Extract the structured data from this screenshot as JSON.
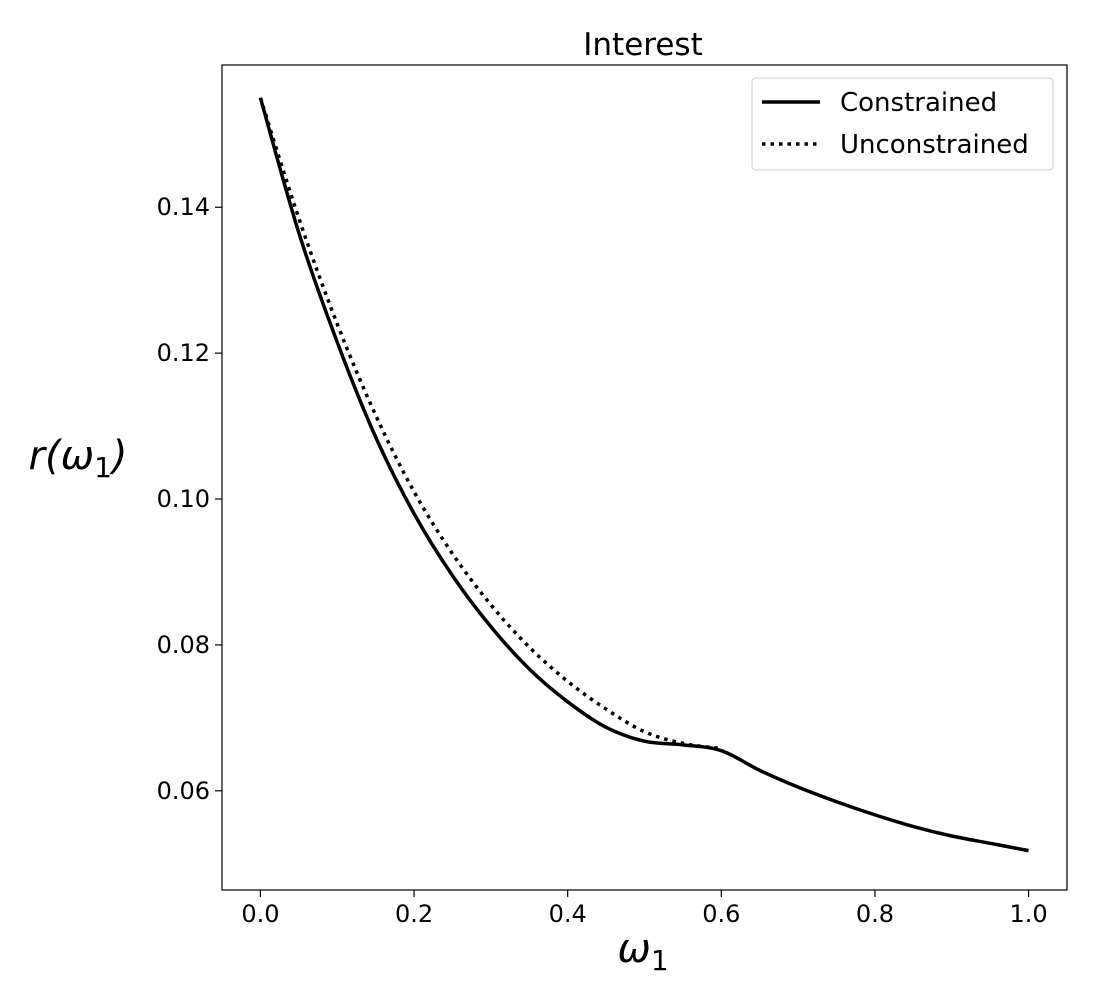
{
  "chart_data": {
    "type": "line",
    "title": "Interest",
    "xlabel": {
      "symbol": "ω",
      "sub": "1"
    },
    "ylabel": {
      "prefix": "r(",
      "symbol": "ω",
      "sub": "1",
      "suffix": ")"
    },
    "xlim": [
      -0.05,
      1.05
    ],
    "ylim": [
      0.0464,
      0.1595
    ],
    "xticks": [
      0.0,
      0.2,
      0.4,
      0.6,
      0.8,
      1.0
    ],
    "xtick_labels": [
      "0.0",
      "0.2",
      "0.4",
      "0.6",
      "0.8",
      "1.0"
    ],
    "yticks": [
      0.06,
      0.08,
      0.1,
      0.12,
      0.14
    ],
    "ytick_labels": [
      "0.06",
      "0.08",
      "0.10",
      "0.12",
      "0.14"
    ],
    "grid": false,
    "legend_position": "top-right",
    "series": [
      {
        "name": "Constrained",
        "style": "solid",
        "color": "#000000",
        "x": [
          0.0,
          0.05,
          0.1,
          0.15,
          0.2,
          0.25,
          0.3,
          0.35,
          0.4,
          0.45,
          0.5,
          0.55,
          0.6,
          0.65,
          0.7,
          0.75,
          0.8,
          0.85,
          0.9,
          0.95,
          1.0
        ],
        "y": [
          0.155,
          0.1365,
          0.1215,
          0.1085,
          0.098,
          0.0895,
          0.0825,
          0.0767,
          0.0722,
          0.0687,
          0.0668,
          0.0663,
          0.0655,
          0.0628,
          0.0605,
          0.0585,
          0.0567,
          0.0551,
          0.0538,
          0.0528,
          0.0518
        ]
      },
      {
        "name": "Unconstrained",
        "style": "dotted",
        "color": "#000000",
        "x": [
          0.0,
          0.05,
          0.1,
          0.15,
          0.2,
          0.25,
          0.3,
          0.35,
          0.4,
          0.45,
          0.5,
          0.55,
          0.6
        ],
        "y": [
          0.155,
          0.1385,
          0.124,
          0.1115,
          0.101,
          0.0925,
          0.0855,
          0.0797,
          0.075,
          0.0712,
          0.0681,
          0.0665,
          0.0658
        ]
      }
    ]
  }
}
